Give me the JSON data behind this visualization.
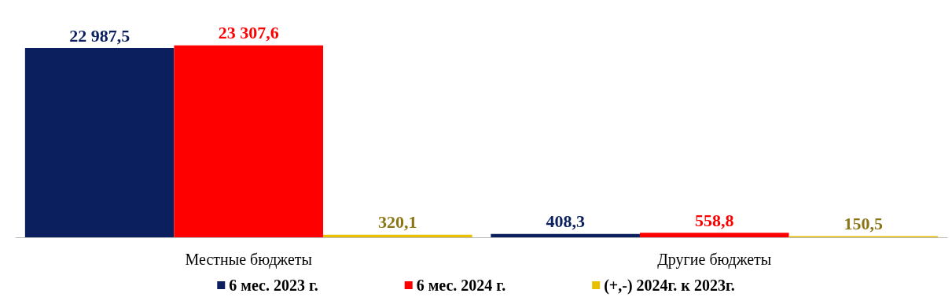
{
  "chart_data": {
    "type": "bar",
    "categories": [
      "Местные бюджеты",
      "Другие бюджеты"
    ],
    "series": [
      {
        "name": "6 мес. 2023 г.",
        "color": "#0b1f5e",
        "values": [
          22987.5,
          408.3
        ],
        "value_labels": [
          "22 987,5",
          "408,3"
        ]
      },
      {
        "name": "6 мес. 2024 г.",
        "color": "#ff0000",
        "values": [
          23307.6,
          558.8
        ],
        "value_labels": [
          "23 307,6",
          "558,8"
        ]
      },
      {
        "name": "(+,-) 2024г. к 2023г.",
        "color": "#e8c000",
        "values": [
          320.1,
          150.5
        ],
        "value_labels": [
          "320,1",
          "150,5"
        ]
      }
    ],
    "legend": "bottom"
  }
}
